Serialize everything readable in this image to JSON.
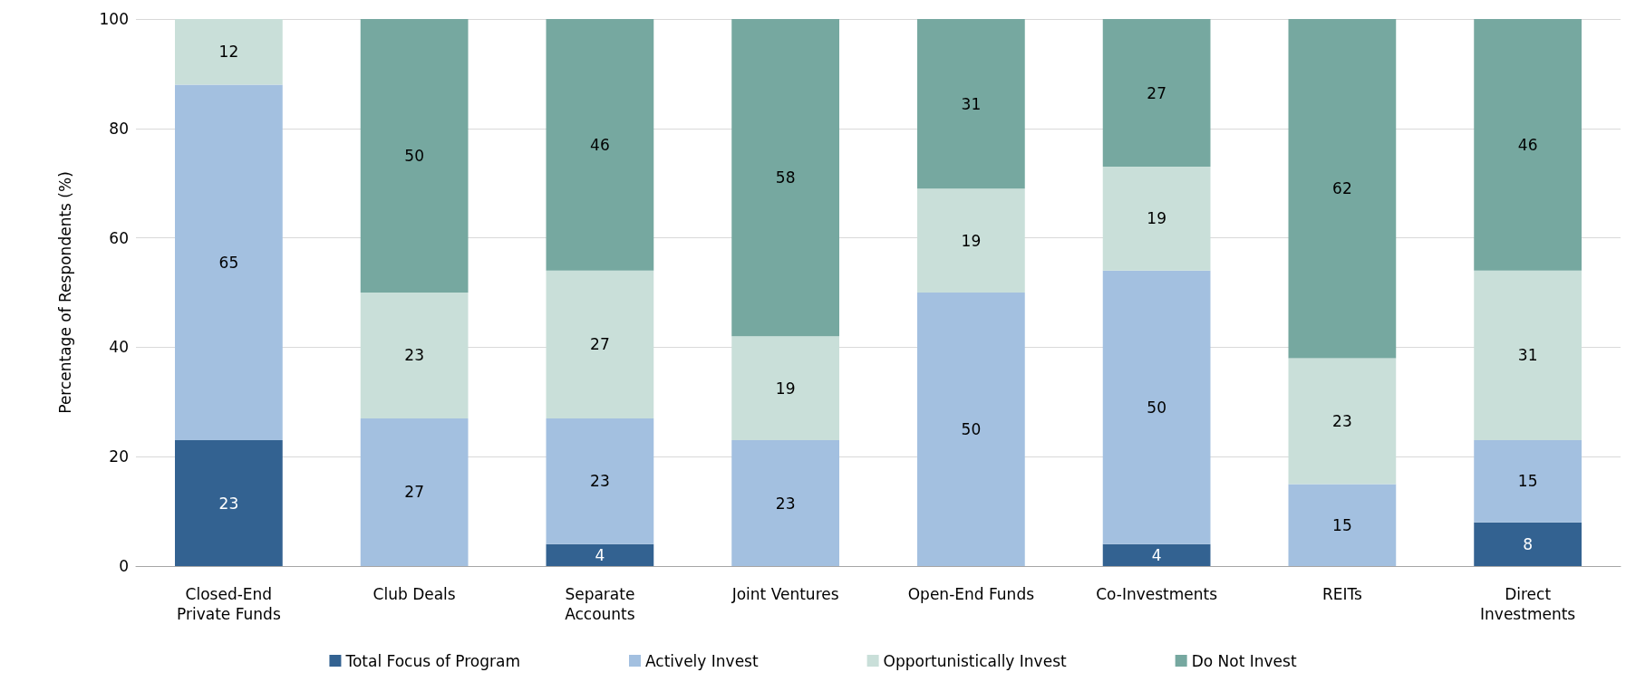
{
  "chart_data": {
    "type": "bar",
    "stacked": true,
    "ylabel": "Percentage of Respondents (%)",
    "categories": [
      "Closed-End\nPrivate Funds",
      "Club Deals",
      "Separate\nAccounts",
      "Joint Ventures",
      "Open-End Funds",
      "Co-Investments",
      "REITs",
      "Direct\nInvestments"
    ],
    "series": [
      {
        "name": "Total Focus of Program",
        "color": "#336291",
        "values": [
          23,
          null,
          4,
          null,
          null,
          4,
          null,
          8
        ]
      },
      {
        "name": "Actively Invest",
        "color": "#a3c0e0",
        "values": [
          65,
          27,
          23,
          23,
          50,
          50,
          15,
          15
        ]
      },
      {
        "name": "Opportunistically Invest",
        "color": "#c9dfd9",
        "values": [
          12,
          23,
          27,
          19,
          19,
          19,
          23,
          31
        ]
      },
      {
        "name": "Do Not Invest",
        "color": "#76a8a0",
        "values": [
          null,
          50,
          46,
          58,
          31,
          27,
          62,
          46
        ]
      }
    ],
    "ylim": [
      0,
      100
    ],
    "yticks": [
      0,
      20,
      40,
      60,
      80,
      100
    ],
    "grid": "y",
    "legend": "bottom",
    "data_labels": true
  }
}
